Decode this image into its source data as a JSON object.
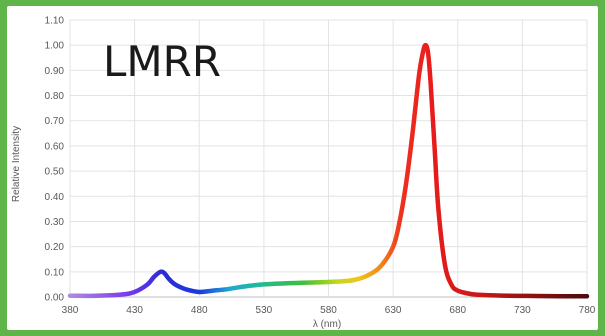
{
  "chart_data": {
    "type": "line",
    "title": "LMRR",
    "xlabel": "λ (nm)",
    "ylabel": "Relative Intensity",
    "xlim": [
      380,
      780
    ],
    "ylim": [
      0,
      1.1
    ],
    "x_ticks": [
      "380",
      "430",
      "480",
      "530",
      "580",
      "630",
      "680",
      "730",
      "780"
    ],
    "y_ticks": [
      "0.00",
      "0.10",
      "0.20",
      "0.30",
      "0.40",
      "0.50",
      "0.60",
      "0.70",
      "0.80",
      "0.90",
      "1.00",
      "1.10"
    ],
    "grid": true,
    "series": [
      {
        "x": [
          380,
          400,
          420,
          430,
          440,
          445,
          450,
          453,
          456,
          460,
          465,
          470,
          480,
          490,
          500,
          510,
          520,
          530,
          550,
          570,
          590,
          600,
          610,
          620,
          630,
          635,
          640,
          645,
          650,
          653,
          655,
          657,
          659,
          662,
          665,
          670,
          675,
          680,
          690,
          700,
          720,
          740,
          760,
          780
        ],
        "y": [
          0.005,
          0.005,
          0.01,
          0.02,
          0.05,
          0.08,
          0.1,
          0.095,
          0.075,
          0.055,
          0.04,
          0.03,
          0.02,
          0.025,
          0.03,
          0.038,
          0.045,
          0.05,
          0.055,
          0.058,
          0.062,
          0.068,
          0.085,
          0.12,
          0.2,
          0.3,
          0.45,
          0.65,
          0.88,
          0.97,
          1.0,
          0.97,
          0.85,
          0.6,
          0.35,
          0.13,
          0.05,
          0.025,
          0.012,
          0.008,
          0.005,
          0.004,
          0.003,
          0.003
        ]
      }
    ]
  }
}
